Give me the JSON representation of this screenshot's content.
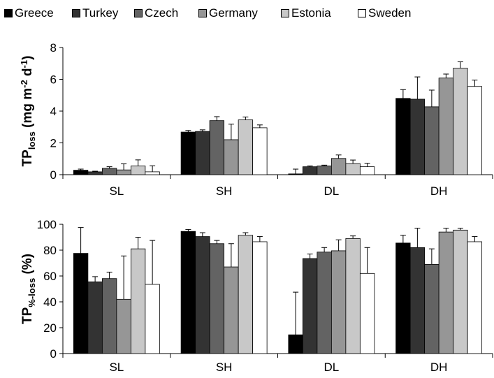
{
  "legend": {
    "entries": [
      {
        "name": "Greece",
        "color": "#000000"
      },
      {
        "name": "Turkey",
        "color": "#333333"
      },
      {
        "name": "Czech",
        "color": "#636363"
      },
      {
        "name": "Germany",
        "color": "#969696"
      },
      {
        "name": "Estonia",
        "color": "#c8c8c8"
      },
      {
        "name": "Sweden",
        "color": "#ffffff"
      }
    ]
  },
  "chart_data": [
    {
      "type": "bar",
      "ylabel": {
        "main": "TP",
        "sub": "loss",
        "units": " (mg m",
        "sup1": "-2",
        "mid": " d",
        "sup2": "-1",
        "end": ")"
      },
      "categories": [
        "SL",
        "SH",
        "DL",
        "DH"
      ],
      "ylim": [
        0,
        8
      ],
      "yticks": [
        0,
        2,
        4,
        6,
        8
      ],
      "series": [
        {
          "name": "Greece",
          "values": [
            0.28,
            2.68,
            0.05,
            4.8
          ],
          "errors": [
            0.07,
            0.1,
            0.3,
            0.55
          ]
        },
        {
          "name": "Turkey",
          "values": [
            0.18,
            2.72,
            0.5,
            4.75
          ],
          "errors": [
            0.04,
            0.1,
            0.05,
            1.4
          ]
        },
        {
          "name": "Czech",
          "values": [
            0.4,
            3.4,
            0.55,
            4.27
          ],
          "errors": [
            0.1,
            0.25,
            0.05,
            1.05
          ]
        },
        {
          "name": "Germany",
          "values": [
            0.3,
            2.2,
            1.02,
            6.08
          ],
          "errors": [
            0.38,
            0.98,
            0.22,
            0.25
          ]
        },
        {
          "name": "Estonia",
          "values": [
            0.55,
            3.45,
            0.7,
            6.7
          ],
          "errors": [
            0.38,
            0.18,
            0.22,
            0.4
          ]
        },
        {
          "name": "Sweden",
          "values": [
            0.18,
            2.95,
            0.5,
            5.55
          ],
          "errors": [
            0.38,
            0.18,
            0.22,
            0.4
          ]
        }
      ]
    },
    {
      "type": "bar",
      "ylabel": {
        "main": "TP",
        "sub": "%-loss",
        "units": " (%)"
      },
      "categories": [
        "SL",
        "SH",
        "DL",
        "DH"
      ],
      "ylim": [
        0,
        100
      ],
      "yticks": [
        0,
        20,
        40,
        60,
        80,
        100
      ],
      "series": [
        {
          "name": "Greece",
          "values": [
            77.5,
            94.5,
            14.5,
            85.5
          ],
          "errors": [
            20,
            1.5,
            33,
            6
          ]
        },
        {
          "name": "Turkey",
          "values": [
            55.5,
            90.5,
            73.5,
            82
          ],
          "errors": [
            4,
            3,
            3.5,
            15
          ]
        },
        {
          "name": "Czech",
          "values": [
            58,
            85,
            78.5,
            69
          ],
          "errors": [
            5,
            2.5,
            3.5,
            12
          ]
        },
        {
          "name": "Germany",
          "values": [
            42,
            67,
            79.5,
            94
          ],
          "errors": [
            33.5,
            18,
            8.5,
            3
          ]
        },
        {
          "name": "Estonia",
          "values": [
            81,
            91.5,
            89,
            95.5
          ],
          "errors": [
            9,
            2,
            2,
            1.5
          ]
        },
        {
          "name": "Sweden",
          "values": [
            53.5,
            86.5,
            62,
            86.5
          ],
          "errors": [
            34,
            4,
            20,
            4
          ]
        }
      ]
    }
  ]
}
